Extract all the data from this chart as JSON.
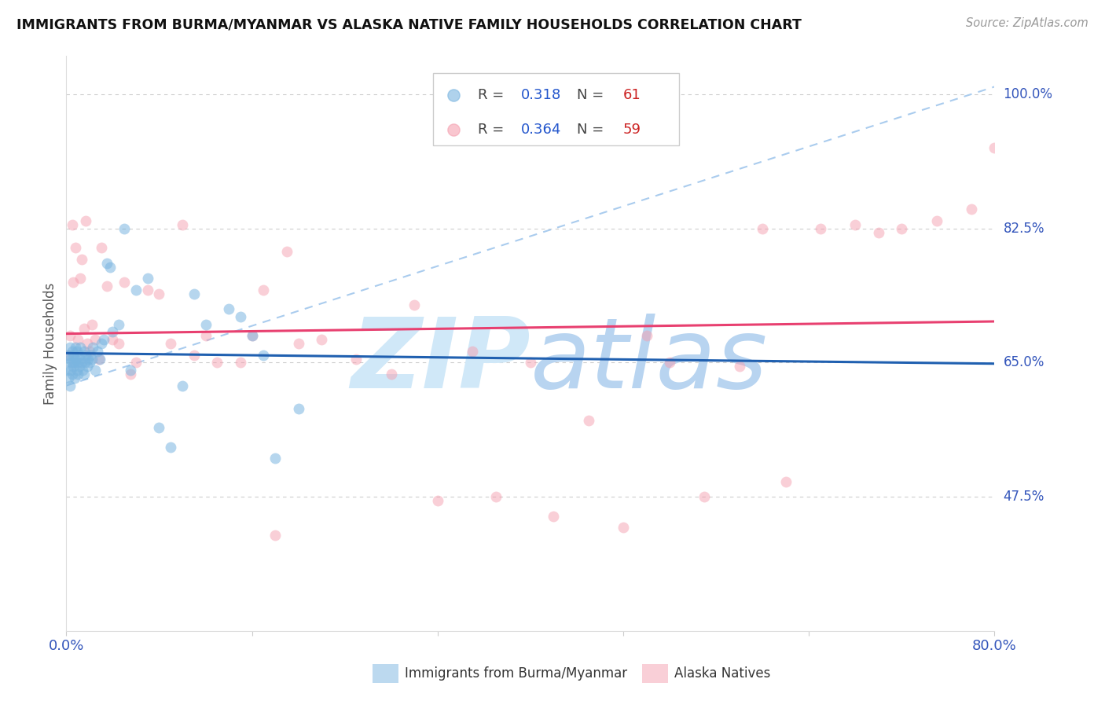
{
  "title": "IMMIGRANTS FROM BURMA/MYANMAR VS ALASKA NATIVE FAMILY HOUSEHOLDS CORRELATION CHART",
  "source": "Source: ZipAtlas.com",
  "xlabel_start": "0.0%",
  "xlabel_end": "80.0%",
  "ylabel_label": "Family Households",
  "yticks": [
    47.5,
    65.0,
    82.5,
    100.0
  ],
  "ytick_labels": [
    "47.5%",
    "65.0%",
    "82.5%",
    "100.0%"
  ],
  "xmin": 0.0,
  "xmax": 80.0,
  "ymin": 30.0,
  "ymax": 105.0,
  "legend_blue_r": "0.318",
  "legend_blue_n": "61",
  "legend_pink_r": "0.364",
  "legend_pink_n": "59",
  "blue_color": "#7ab5e0",
  "pink_color": "#f5a0b0",
  "blue_line_color": "#2060b0",
  "pink_line_color": "#e84070",
  "dashed_line_color": "#aaccee",
  "watermark_color": "#d0e8f8",
  "marker_size": 100,
  "title_fontsize": 13,
  "axis_label_color": "#3355bb",
  "ylabel_color": "#555555"
}
